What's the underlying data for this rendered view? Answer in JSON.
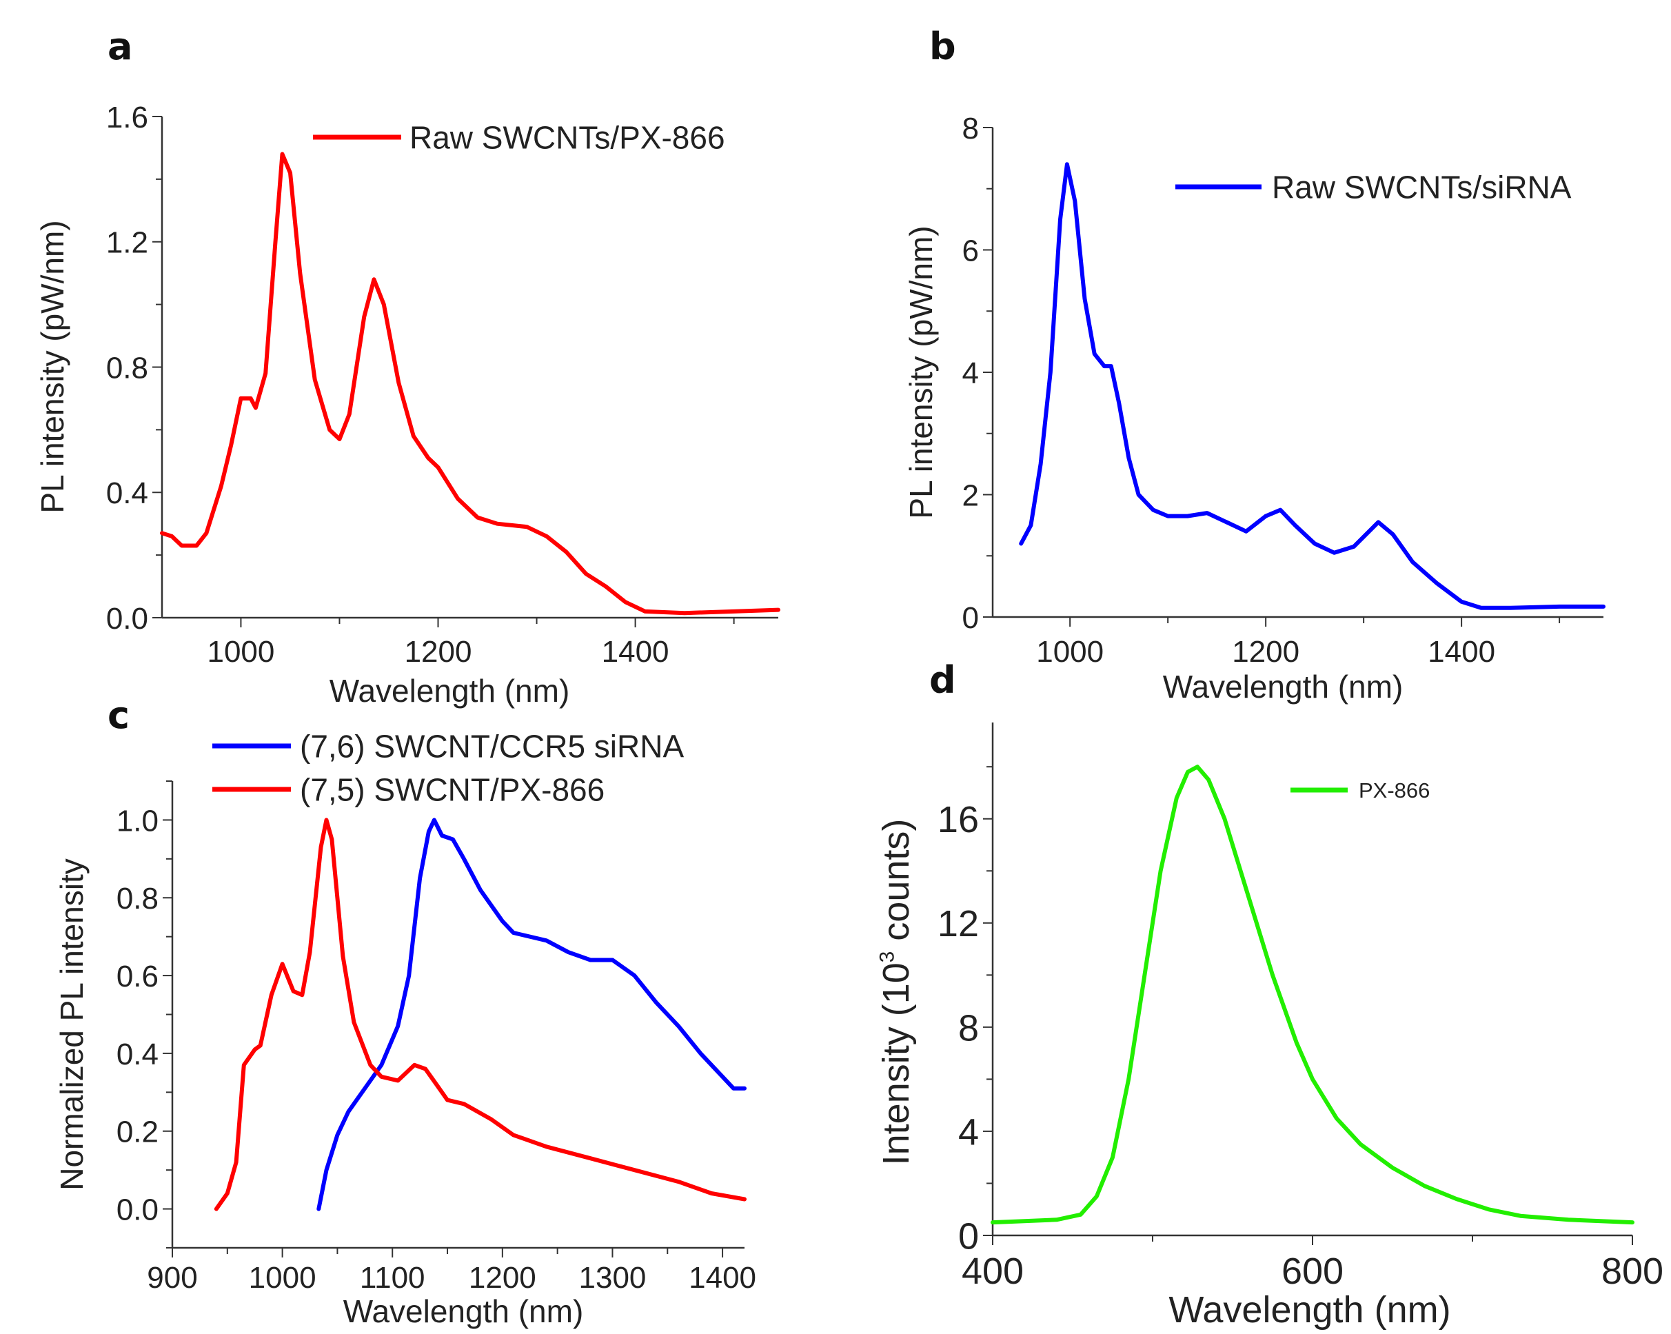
{
  "chart_data": [
    {
      "panel": "a",
      "type": "line",
      "xlabel": "Wavelength (nm)",
      "ylabel": "PL intensity (pW/nm)",
      "xlim": [
        920,
        1545
      ],
      "ylim": [
        0,
        1.6
      ],
      "xticks": [
        "1000",
        "1200",
        "1400"
      ],
      "yticks": [
        "0.0",
        "0.4",
        "0.8",
        "1.2",
        "1.6"
      ],
      "grid": false,
      "legend_position": "top-right",
      "series": [
        {
          "name": "Raw SWCNTs/PX-866",
          "color": "#ff0000",
          "x": [
            920,
            930,
            940,
            955,
            965,
            980,
            990,
            1000,
            1010,
            1015,
            1025,
            1035,
            1042,
            1050,
            1060,
            1075,
            1090,
            1100,
            1110,
            1125,
            1135,
            1145,
            1160,
            1175,
            1190,
            1200,
            1220,
            1240,
            1260,
            1290,
            1310,
            1330,
            1350,
            1370,
            1390,
            1410,
            1450,
            1500,
            1545
          ],
          "y": [
            0.27,
            0.26,
            0.23,
            0.23,
            0.27,
            0.42,
            0.55,
            0.7,
            0.7,
            0.67,
            0.78,
            1.2,
            1.48,
            1.42,
            1.1,
            0.76,
            0.6,
            0.57,
            0.65,
            0.96,
            1.08,
            1.0,
            0.75,
            0.58,
            0.51,
            0.48,
            0.38,
            0.32,
            0.3,
            0.29,
            0.26,
            0.21,
            0.14,
            0.1,
            0.05,
            0.02,
            0.015,
            0.02,
            0.025
          ]
        }
      ]
    },
    {
      "panel": "b",
      "type": "line",
      "xlabel": "Wavelength (nm)",
      "ylabel": "PL intensity (pW/nm)",
      "xlim": [
        921,
        1545
      ],
      "ylim": [
        0,
        8
      ],
      "xticks": [
        "1000",
        "1200",
        "1400"
      ],
      "yticks": [
        "0",
        "2",
        "4",
        "6",
        "8"
      ],
      "grid": false,
      "legend_position": "top-right",
      "series": [
        {
          "name": "Raw SWCNTs/siRNA",
          "color": "#0000ff",
          "x": [
            950,
            960,
            970,
            980,
            990,
            997,
            1005,
            1015,
            1025,
            1035,
            1042,
            1050,
            1060,
            1070,
            1085,
            1100,
            1120,
            1140,
            1160,
            1180,
            1200,
            1215,
            1230,
            1250,
            1270,
            1290,
            1315,
            1330,
            1350,
            1375,
            1400,
            1420,
            1450,
            1500,
            1545
          ],
          "y": [
            1.2,
            1.5,
            2.5,
            4.0,
            6.5,
            7.4,
            6.8,
            5.2,
            4.3,
            4.1,
            4.1,
            3.5,
            2.6,
            2.0,
            1.75,
            1.65,
            1.65,
            1.7,
            1.55,
            1.4,
            1.65,
            1.75,
            1.5,
            1.2,
            1.05,
            1.15,
            1.55,
            1.35,
            0.9,
            0.55,
            0.25,
            0.15,
            0.15,
            0.17,
            0.17
          ]
        }
      ]
    },
    {
      "panel": "c",
      "type": "line",
      "xlabel": "Wavelength (nm)",
      "ylabel": "Normalized PL intensity",
      "xlim": [
        900,
        1420
      ],
      "ylim": [
        -0.1,
        1.1
      ],
      "xticks": [
        "900",
        "1000",
        "1100",
        "1200",
        "1300",
        "1400"
      ],
      "yticks": [
        "0.0",
        "0.2",
        "0.4",
        "0.6",
        "0.8",
        "1.0"
      ],
      "grid": false,
      "legend_position": "top-left",
      "series": [
        {
          "name": "(7,6) SWCNT/CCR5 siRNA",
          "color": "#0000ff",
          "x": [
            1033,
            1040,
            1050,
            1060,
            1075,
            1090,
            1105,
            1115,
            1125,
            1133,
            1138,
            1145,
            1155,
            1165,
            1180,
            1200,
            1210,
            1240,
            1260,
            1280,
            1300,
            1320,
            1340,
            1360,
            1380,
            1400,
            1410,
            1420
          ],
          "y": [
            0,
            0.1,
            0.19,
            0.25,
            0.31,
            0.37,
            0.47,
            0.6,
            0.85,
            0.97,
            1.0,
            0.96,
            0.95,
            0.9,
            0.82,
            0.74,
            0.71,
            0.69,
            0.66,
            0.64,
            0.64,
            0.6,
            0.53,
            0.47,
            0.4,
            0.34,
            0.31,
            0.31
          ]
        },
        {
          "name": "(7,5) SWCNT/PX-866",
          "color": "#ff0000",
          "x": [
            940,
            950,
            958,
            965,
            975,
            980,
            990,
            1000,
            1010,
            1018,
            1025,
            1035,
            1040,
            1045,
            1055,
            1065,
            1080,
            1090,
            1105,
            1120,
            1130,
            1140,
            1150,
            1165,
            1190,
            1210,
            1240,
            1280,
            1320,
            1360,
            1390,
            1420
          ],
          "y": [
            0,
            0.04,
            0.12,
            0.37,
            0.41,
            0.42,
            0.55,
            0.63,
            0.56,
            0.55,
            0.66,
            0.93,
            1.0,
            0.95,
            0.65,
            0.48,
            0.37,
            0.34,
            0.33,
            0.37,
            0.36,
            0.32,
            0.28,
            0.27,
            0.23,
            0.19,
            0.16,
            0.13,
            0.1,
            0.07,
            0.04,
            0.025
          ]
        }
      ]
    },
    {
      "panel": "d",
      "type": "line",
      "xlabel": "Wavelength (nm)",
      "ylabel": "Intensity (10",
      "ylabel_sup": "3",
      "ylabel_end": " counts)",
      "xlim": [
        400,
        800
      ],
      "ylim": [
        0,
        19.7
      ],
      "xticks": [
        "400",
        "600",
        "800"
      ],
      "yticks": [
        "0",
        "4",
        "8",
        "12",
        "16"
      ],
      "grid": false,
      "legend_position": "top-right",
      "series": [
        {
          "name": "PX-866",
          "color": "#22ee00",
          "x": [
            400,
            440,
            455,
            465,
            475,
            485,
            495,
            505,
            515,
            522,
            528,
            535,
            545,
            560,
            575,
            590,
            600,
            615,
            630,
            650,
            670,
            690,
            710,
            730,
            760,
            800
          ],
          "y": [
            0.5,
            0.6,
            0.8,
            1.5,
            3,
            6,
            10,
            14,
            16.8,
            17.8,
            18,
            17.5,
            16,
            13,
            10,
            7.4,
            6,
            4.5,
            3.5,
            2.6,
            1.9,
            1.4,
            1.0,
            0.75,
            0.6,
            0.5
          ]
        }
      ]
    }
  ]
}
